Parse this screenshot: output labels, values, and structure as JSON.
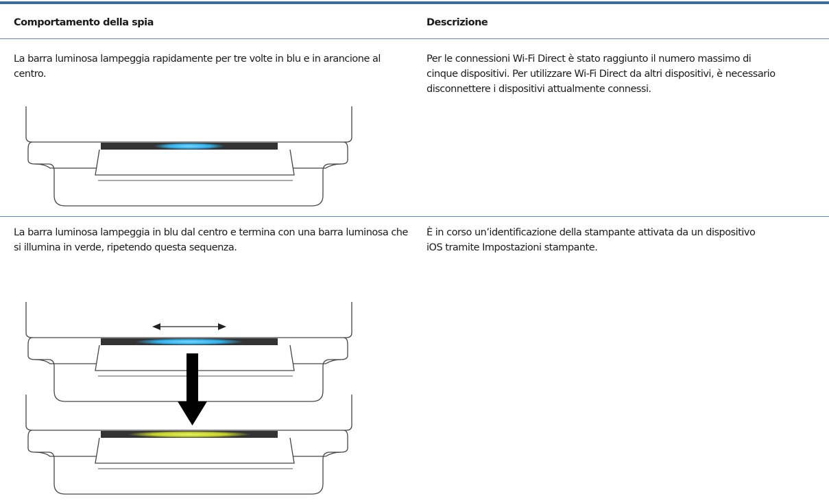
{
  "table": {
    "header": [
      "Comportamento della spia",
      "Descrizione"
    ],
    "rows": [
      [
        "La barra luminosa lampeggia rapidamente per tre volte in blu e in arancione al centro.",
        "Per le connessioni Wi-Fi Direct è stato raggiunto il numero massimo di cinque dispositivi. Per utilizzare Wi-Fi Direct da altri dispositivi, è necessario disconnettere i dispositivi attualmente connessi."
      ],
      [
        "La barra luminosa lampeggia in blu dal centro e termina con una barra luminosa che si illumina in verde, ripetendo questa sequenza.",
        "È in corso un’identificazione della stampante attivata da un dispositivo iOS tramite Impostazioni stampante."
      ]
    ]
  }
}
